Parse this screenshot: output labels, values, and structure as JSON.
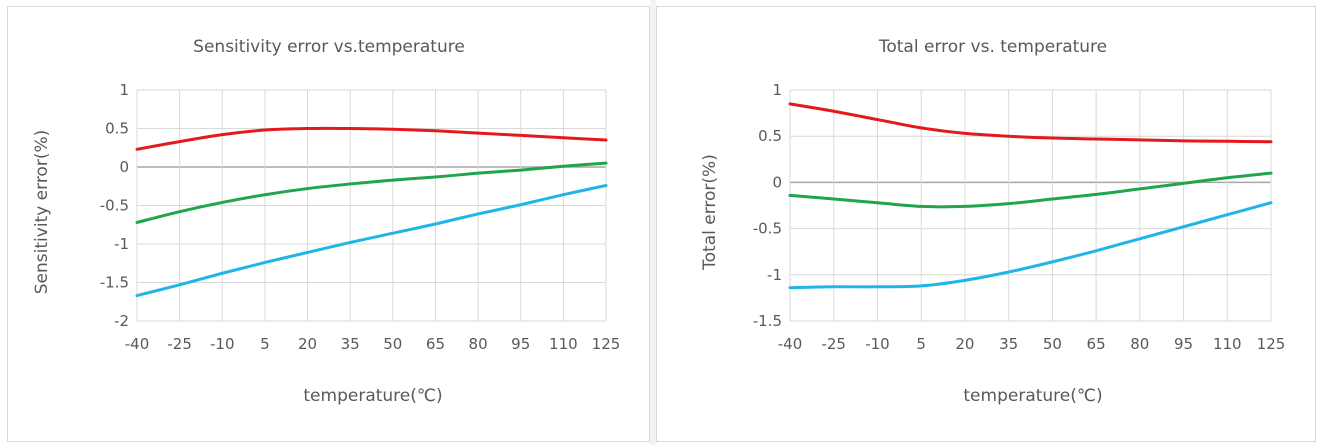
{
  "charts": [
    {
      "chart_data": {
        "type": "line",
        "title": "Sensitivity error vs.temperature",
        "xlabel": "temperature(℃)",
        "ylabel": "Sensitivity error(%)",
        "categories": [
          "-40",
          "-25",
          "-10",
          "5",
          "20",
          "35",
          "50",
          "65",
          "80",
          "95",
          "110",
          "125"
        ],
        "ylim": [
          -2,
          1
        ],
        "yticks": [
          "1",
          "0.5",
          "0",
          "-0.5",
          "-1",
          "-1.5",
          "-2"
        ],
        "ytick_values": [
          1,
          0.5,
          0,
          -0.5,
          -1,
          -1.5,
          -2
        ],
        "grid": true,
        "series": [
          {
            "color": "#e31a1c",
            "values": [
              0.23,
              0.33,
              0.42,
              0.48,
              0.5,
              0.5,
              0.49,
              0.47,
              0.44,
              0.41,
              0.38,
              0.35
            ]
          },
          {
            "color": "#1fa54a",
            "values": [
              -0.72,
              -0.58,
              -0.46,
              -0.36,
              -0.28,
              -0.22,
              -0.17,
              -0.13,
              -0.08,
              -0.04,
              0.01,
              0.05
            ]
          },
          {
            "color": "#1fb5e8",
            "values": [
              -1.67,
              -1.53,
              -1.38,
              -1.24,
              -1.11,
              -0.98,
              -0.86,
              -0.74,
              -0.61,
              -0.49,
              -0.36,
              -0.24
            ]
          }
        ]
      }
    },
    {
      "chart_data": {
        "type": "line",
        "title": "Total error vs. temperature",
        "xlabel": "temperature(℃)",
        "ylabel": "Total error(%)",
        "categories": [
          "-40",
          "-25",
          "-10",
          "5",
          "20",
          "35",
          "50",
          "65",
          "80",
          "95",
          "110",
          "125"
        ],
        "ylim": [
          -1.5,
          1
        ],
        "yticks": [
          "1",
          "0.5",
          "0",
          "-0.5",
          "-1",
          "-1.5"
        ],
        "ytick_values": [
          1,
          0.5,
          0,
          -0.5,
          -1,
          -1.5
        ],
        "grid": true,
        "series": [
          {
            "color": "#e31a1c",
            "values": [
              0.85,
              0.77,
              0.68,
              0.59,
              0.53,
              0.5,
              0.48,
              0.47,
              0.46,
              0.45,
              0.445,
              0.44
            ]
          },
          {
            "color": "#1fa54a",
            "values": [
              -0.14,
              -0.18,
              -0.22,
              -0.26,
              -0.26,
              -0.23,
              -0.18,
              -0.13,
              -0.07,
              -0.01,
              0.05,
              0.1
            ]
          },
          {
            "color": "#1fb5e8",
            "values": [
              -1.14,
              -1.13,
              -1.13,
              -1.12,
              -1.06,
              -0.97,
              -0.86,
              -0.74,
              -0.61,
              -0.48,
              -0.35,
              -0.22
            ]
          }
        ]
      }
    }
  ]
}
